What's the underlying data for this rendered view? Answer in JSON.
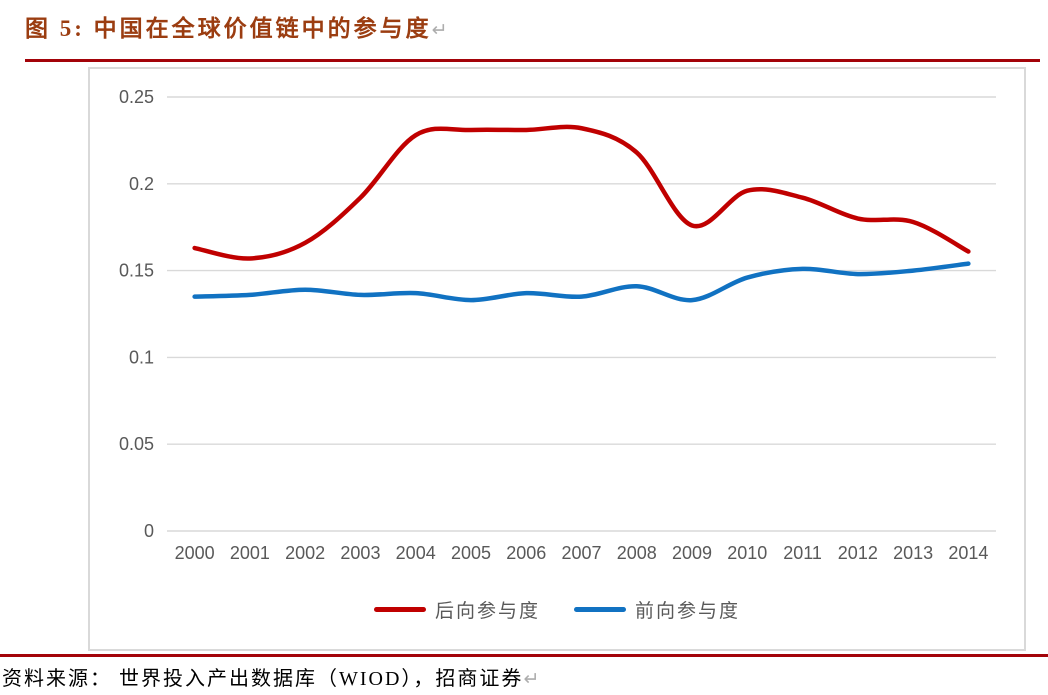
{
  "header": {
    "title": "图 5:  中国在全球价值链中的参与度",
    "paragraph_mark": "↵"
  },
  "footer": {
    "source": "资料来源：  世界投入产出数据库（WIOD），招商证券",
    "paragraph_mark": "↵"
  },
  "colors": {
    "accent_rule": "#A30309",
    "title": "#9B3D11",
    "grid": "#D9D9D9",
    "axis_text": "#595959",
    "chart_border": "#D9D9D9",
    "series_backward": "#C00000",
    "series_forward": "#1172C2"
  },
  "chart_data": {
    "type": "line",
    "title": "中国在全球价值链中的参与度",
    "smoothed": true,
    "grid": true,
    "legend_position": "bottom",
    "categories": [
      "2000",
      "2001",
      "2002",
      "2003",
      "2004",
      "2005",
      "2006",
      "2007",
      "2008",
      "2009",
      "2010",
      "2011",
      "2012",
      "2013",
      "2014"
    ],
    "series": [
      {
        "name": "后向参与度",
        "color": "#C00000",
        "values": [
          0.163,
          0.157,
          0.166,
          0.192,
          0.228,
          0.231,
          0.231,
          0.232,
          0.218,
          0.176,
          0.196,
          0.192,
          0.18,
          0.178,
          0.161
        ]
      },
      {
        "name": "前向参与度",
        "color": "#1172C2",
        "values": [
          0.135,
          0.136,
          0.139,
          0.136,
          0.137,
          0.133,
          0.137,
          0.135,
          0.141,
          0.133,
          0.146,
          0.151,
          0.148,
          0.15,
          0.154
        ]
      }
    ],
    "xlabel": "",
    "ylabel": "",
    "ylim": [
      0,
      0.25
    ],
    "y_ticks": [
      "0",
      "0.05",
      "0.1",
      "0.15",
      "0.2",
      "0.25"
    ]
  }
}
